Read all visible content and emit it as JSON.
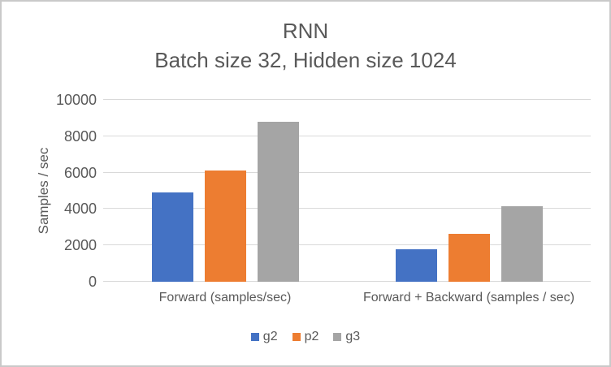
{
  "chart_data": {
    "type": "bar",
    "title": "RNN",
    "subtitle": "Batch size 32, Hidden size 1024",
    "categories": [
      "Forward (samples/sec)",
      "Forward + Backward (samples / sec)"
    ],
    "series": [
      {
        "name": "g2",
        "color": "#4472C4",
        "values": [
          4900,
          1800
        ]
      },
      {
        "name": "p2",
        "color": "#ED7D31",
        "values": [
          6100,
          2650
        ]
      },
      {
        "name": "g3",
        "color": "#A5A5A5",
        "values": [
          8800,
          4150
        ]
      }
    ],
    "xlabel": "",
    "ylabel": "Samples / sec",
    "ylim": [
      0,
      10000
    ],
    "yticks": [
      0,
      2000,
      4000,
      6000,
      8000,
      10000
    ],
    "grid": true,
    "legend_position": "bottom"
  },
  "colors": {
    "text": "#595959",
    "gridline": "#d9d9d9",
    "frame_border": "#c9c9c9",
    "background": "#ffffff"
  }
}
